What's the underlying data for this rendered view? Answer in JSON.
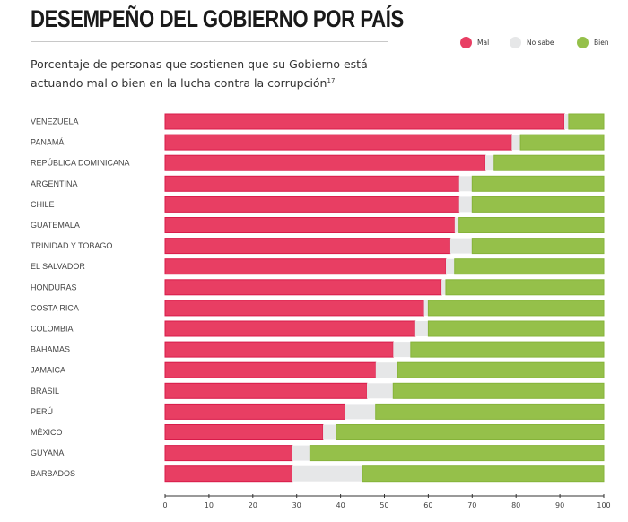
{
  "header": {
    "title": "DESEMPEÑO DEL GOBIERNO POR PAÍS",
    "subtitle": "Porcentaje de personas que sostienen que su Gobierno está actuando mal o bien en la lucha contra la corrupción",
    "footnote": "17"
  },
  "legend": [
    {
      "label": "Mal",
      "color": "#e83e63"
    },
    {
      "label": "No sabe",
      "color": "#e6e7e8"
    },
    {
      "label": "Bien",
      "color": "#95c04a"
    }
  ],
  "chart_data": {
    "type": "bar",
    "orientation": "horizontal",
    "stacked": true,
    "title": "DESEMPEÑO DEL GOBIERNO POR PAÍS",
    "subtitle": "Porcentaje de personas que sostienen que su Gobierno está actuando mal o bien en la lucha contra la corrupción",
    "xlabel": "",
    "ylabel": "",
    "xlim": [
      0,
      100
    ],
    "xticks": [
      0,
      10,
      20,
      30,
      40,
      50,
      60,
      70,
      80,
      90,
      100
    ],
    "legend_position": "top-right",
    "grid": false,
    "categories": [
      "VENEZUELA",
      "PANAMÁ",
      "REPÚBLICA DOMINICANA",
      "ARGENTINA",
      "CHILE",
      "GUATEMALA",
      "TRINIDAD Y TOBAGO",
      "EL SALVADOR",
      "HONDURAS",
      "COSTA RICA",
      "COLOMBIA",
      "BAHAMAS",
      "JAMAICA",
      "BRASIL",
      "PERÚ",
      "MÉXICO",
      "GUYANA",
      "BARBADOS"
    ],
    "series": [
      {
        "name": "Mal",
        "color": "#e83e63",
        "values": [
          91,
          79,
          73,
          67,
          67,
          66,
          65,
          64,
          63,
          59,
          57,
          52,
          48,
          46,
          41,
          36,
          29,
          29
        ]
      },
      {
        "name": "No sabe",
        "color": "#e6e7e8",
        "values": [
          1,
          2,
          2,
          3,
          3,
          1,
          5,
          2,
          1,
          1,
          3,
          4,
          5,
          6,
          7,
          3,
          4,
          16
        ]
      },
      {
        "name": "Bien",
        "color": "#95c04a",
        "values": [
          8,
          19,
          25,
          30,
          30,
          33,
          30,
          34,
          36,
          40,
          40,
          44,
          47,
          48,
          52,
          61,
          67,
          55
        ]
      }
    ]
  }
}
